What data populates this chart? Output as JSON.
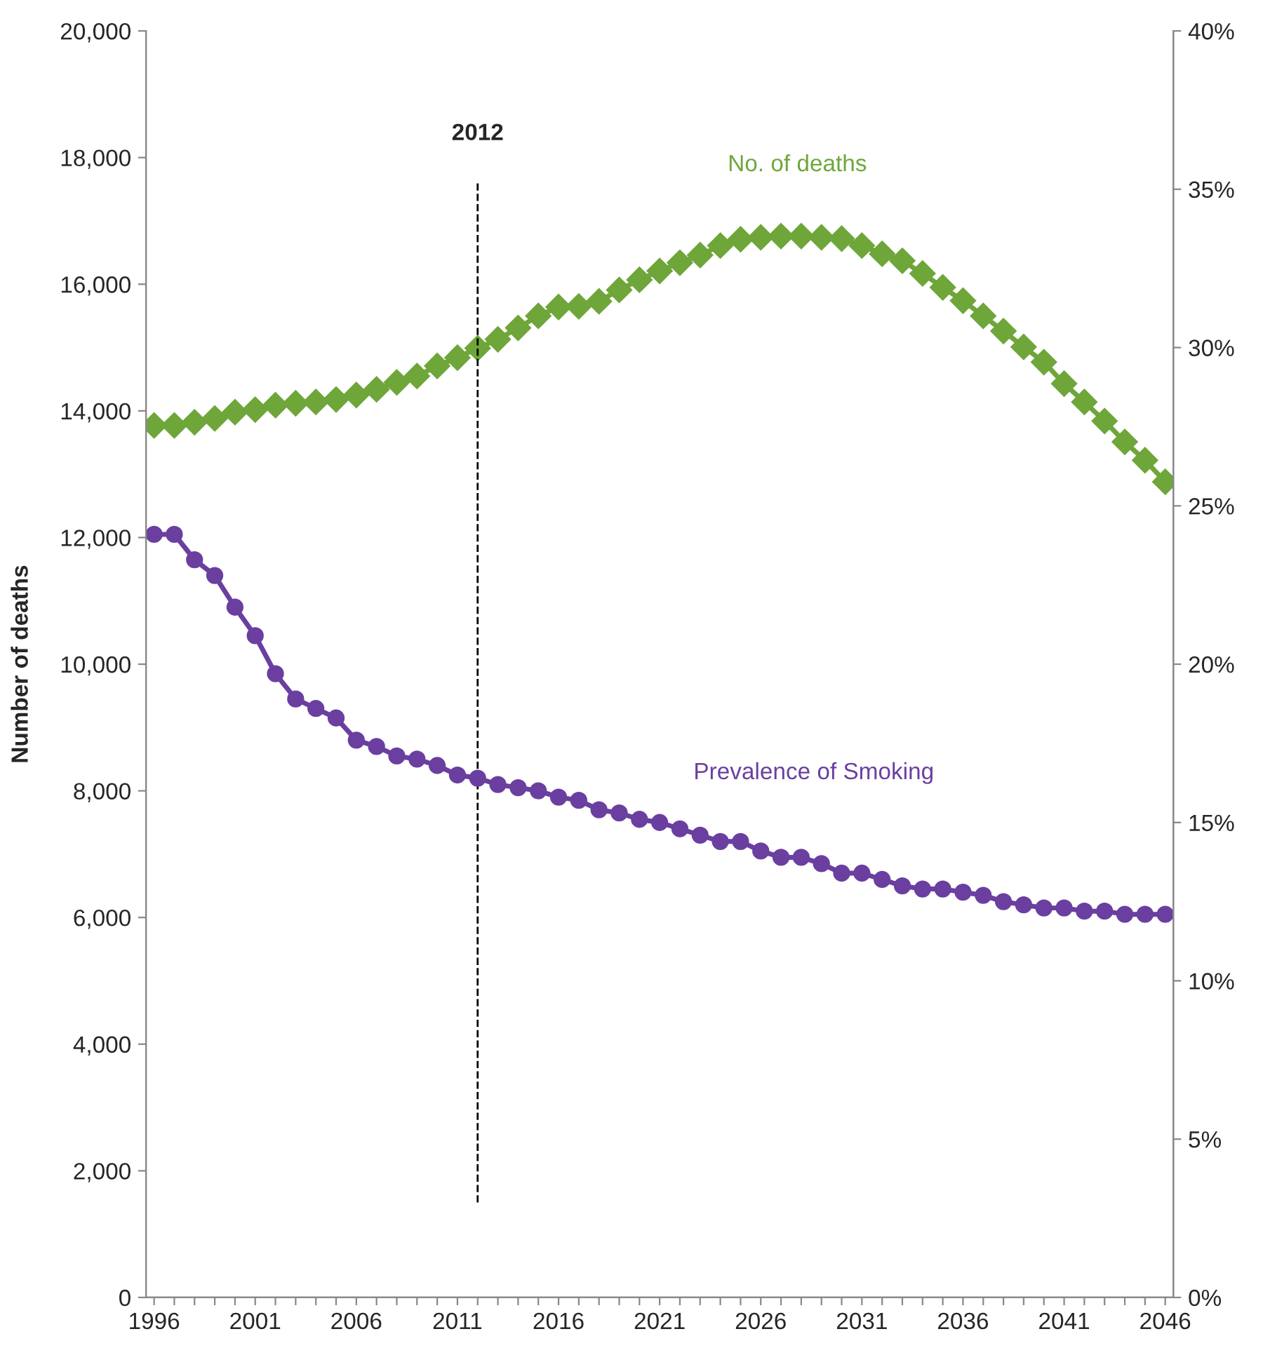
{
  "chart_data": {
    "type": "line",
    "ylabel": "Number of deaths",
    "x": [
      1996,
      1997,
      1998,
      1999,
      2000,
      2001,
      2002,
      2003,
      2004,
      2005,
      2006,
      2007,
      2008,
      2009,
      2010,
      2011,
      2012,
      2013,
      2014,
      2015,
      2016,
      2017,
      2018,
      2019,
      2020,
      2021,
      2022,
      2023,
      2024,
      2025,
      2026,
      2027,
      2028,
      2029,
      2030,
      2031,
      2032,
      2033,
      2034,
      2035,
      2036,
      2037,
      2038,
      2039,
      2040,
      2041,
      2042,
      2043,
      2044,
      2045,
      2046
    ],
    "series": [
      {
        "name": "No. of deaths",
        "color": "#6ea63a",
        "marker": "diamond",
        "values": [
          13770,
          13770,
          13820,
          13880,
          13980,
          14020,
          14090,
          14120,
          14140,
          14180,
          14250,
          14340,
          14450,
          14550,
          14710,
          14840,
          14990,
          15130,
          15310,
          15500,
          15640,
          15650,
          15730,
          15910,
          16070,
          16210,
          16340,
          16460,
          16610,
          16710,
          16740,
          16760,
          16760,
          16740,
          16720,
          16610,
          16480,
          16370,
          16170,
          15950,
          15740,
          15500,
          15260,
          15010,
          14770,
          14430,
          14140,
          13840,
          13510,
          13220,
          12880
        ]
      },
      {
        "name": "Prevalence of Smoking",
        "color": "#6b3fa0",
        "marker": "circle",
        "axis": "y2",
        "values": [
          24.1,
          24.1,
          23.3,
          22.8,
          21.8,
          20.9,
          19.7,
          18.9,
          18.6,
          18.3,
          17.6,
          17.4,
          17.1,
          17.0,
          16.8,
          16.5,
          16.4,
          16.2,
          16.1,
          16.0,
          15.8,
          15.7,
          15.4,
          15.3,
          15.1,
          15.0,
          14.8,
          14.6,
          14.4,
          14.4,
          14.1,
          13.9,
          13.9,
          13.7,
          13.4,
          13.4,
          13.2,
          13.0,
          12.9,
          12.9,
          12.8,
          12.7,
          12.5,
          12.4,
          12.3,
          12.3,
          12.2,
          12.2,
          12.1,
          12.1,
          12.1
        ]
      }
    ],
    "xlim": [
      1995.6,
      2046.4
    ],
    "xticks": [
      1996,
      {
        "value": 1997,
        "label": null
      },
      {
        "value": 1998,
        "label": null
      },
      {
        "value": 1999,
        "label": null
      },
      {
        "value": 2000,
        "label": null
      },
      2001,
      {
        "value": 2002,
        "label": null
      },
      {
        "value": 2003,
        "label": null
      },
      {
        "value": 2004,
        "label": null
      },
      {
        "value": 2005,
        "label": null
      },
      2006,
      {
        "value": 2007,
        "label": null
      },
      {
        "value": 2008,
        "label": null
      },
      {
        "value": 2009,
        "label": null
      },
      {
        "value": 2010,
        "label": null
      },
      2011,
      {
        "value": 2012,
        "label": null
      },
      {
        "value": 2013,
        "label": null
      },
      {
        "value": 2014,
        "label": null
      },
      {
        "value": 2015,
        "label": null
      },
      2016,
      {
        "value": 2017,
        "label": null
      },
      {
        "value": 2018,
        "label": null
      },
      {
        "value": 2019,
        "label": null
      },
      {
        "value": 2020,
        "label": null
      },
      2021,
      {
        "value": 2022,
        "label": null
      },
      {
        "value": 2023,
        "label": null
      },
      {
        "value": 2024,
        "label": null
      },
      {
        "value": 2025,
        "label": null
      },
      2026,
      {
        "value": 2027,
        "label": null
      },
      {
        "value": 2028,
        "label": null
      },
      {
        "value": 2029,
        "label": null
      },
      {
        "value": 2030,
        "label": null
      },
      2031,
      {
        "value": 2032,
        "label": null
      },
      {
        "value": 2033,
        "label": null
      },
      {
        "value": 2034,
        "label": null
      },
      {
        "value": 2035,
        "label": null
      },
      2036,
      {
        "value": 2037,
        "label": null
      },
      {
        "value": 2038,
        "label": null
      },
      {
        "value": 2039,
        "label": null
      },
      {
        "value": 2040,
        "label": null
      },
      2041,
      {
        "value": 2042,
        "label": null
      },
      {
        "value": 2043,
        "label": null
      },
      {
        "value": 2044,
        "label": null
      },
      {
        "value": 2045,
        "label": null
      },
      2046
    ],
    "ylim": [
      0,
      20000
    ],
    "yticks": [
      0,
      {
        "value": 2000,
        "label": "2,000"
      },
      {
        "value": 4000,
        "label": "4,000"
      },
      {
        "value": 6000,
        "label": "6,000"
      },
      {
        "value": 8000,
        "label": "8,000"
      },
      {
        "value": 10000,
        "label": "10,000"
      },
      {
        "value": 12000,
        "label": "12,000"
      },
      {
        "value": 14000,
        "label": "14,000"
      },
      {
        "value": 16000,
        "label": "16,000"
      },
      {
        "value": 18000,
        "label": "18,000"
      },
      {
        "value": 20000,
        "label": "20,000"
      }
    ],
    "y2lim": [
      0,
      40
    ],
    "y2ticks": [
      {
        "value": 0,
        "label": "0%"
      },
      {
        "value": 5,
        "label": "5%"
      },
      {
        "value": 10,
        "label": "10%"
      },
      {
        "value": 15,
        "label": "15%"
      },
      {
        "value": 20,
        "label": "20%"
      },
      {
        "value": 25,
        "label": "25%"
      },
      {
        "value": 30,
        "label": "30%"
      },
      {
        "value": 35,
        "label": "35%"
      },
      {
        "value": 40,
        "label": "40%"
      }
    ],
    "ref_lines": [
      {
        "axis": "x",
        "value": 2012,
        "label": "2012",
        "color": "#000000",
        "line_style": "dashed"
      }
    ],
    "line_style": "solid",
    "grid": false,
    "legend": false
  }
}
